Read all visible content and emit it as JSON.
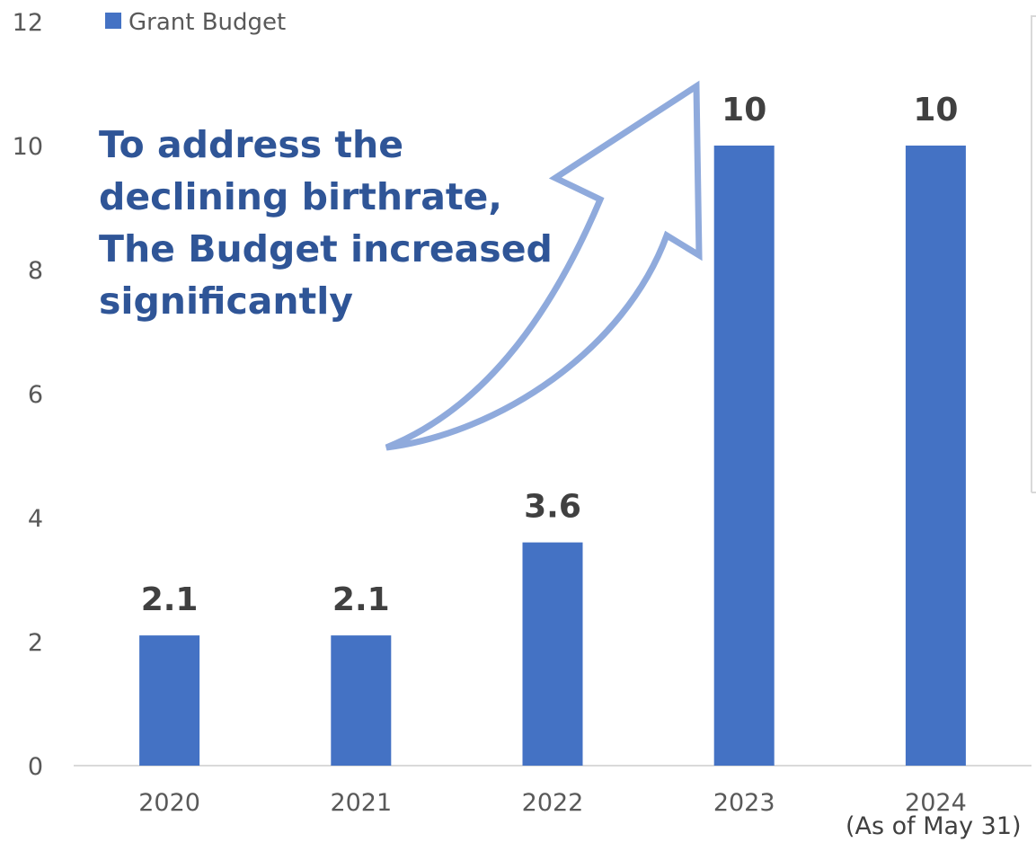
{
  "chart_data": {
    "type": "bar",
    "categories": [
      "2020",
      "2021",
      "2022",
      "2023",
      "2024"
    ],
    "series": [
      {
        "name": "Grant Budget",
        "values": [
          2.1,
          2.1,
          3.6,
          10,
          10
        ],
        "color": "#4472c4"
      }
    ],
    "data_labels": [
      "2.1",
      "2.1",
      "3.6",
      "10",
      "10"
    ],
    "y_ticks": [
      "0",
      "2",
      "4",
      "6",
      "8",
      "10",
      "12"
    ],
    "ylim": [
      0,
      12
    ],
    "legend": {
      "position": "top-left",
      "label": "Grant Budget"
    },
    "annotation": {
      "lines": [
        "To address the",
        "declining birthrate,",
        "The Budget increased",
        "significantly"
      ],
      "color": "#2f5597",
      "arrow_color": "#8faadc"
    },
    "category_note": "(As of May 31)",
    "grid": false
  }
}
